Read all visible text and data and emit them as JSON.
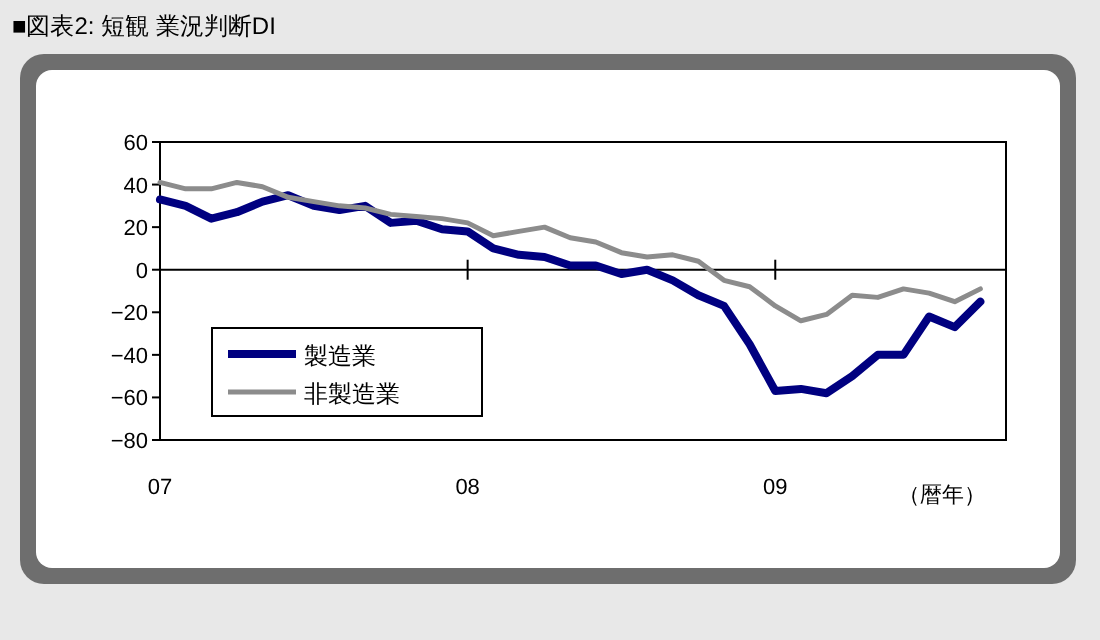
{
  "chart_data": {
    "type": "line",
    "title": "■図表2: 短観 業況判断DI",
    "xlabel": "（暦年）",
    "x": [
      "2007-01",
      "2007-02",
      "2007-03",
      "2007-04",
      "2007-05",
      "2007-06",
      "2007-07",
      "2007-08",
      "2007-09",
      "2007-10",
      "2007-11",
      "2007-12",
      "2008-01",
      "2008-02",
      "2008-03",
      "2008-04",
      "2008-05",
      "2008-06",
      "2008-07",
      "2008-08",
      "2008-09",
      "2008-10",
      "2008-11",
      "2008-12",
      "2009-01",
      "2009-02",
      "2009-03",
      "2009-04",
      "2009-05",
      "2009-06",
      "2009-07",
      "2009-08",
      "2009-09"
    ],
    "series": [
      {
        "name": "製造業",
        "color": "#000080",
        "values": [
          33,
          30,
          24,
          27,
          32,
          35,
          30,
          28,
          30,
          22,
          23,
          19,
          18,
          10,
          7,
          6,
          2,
          2,
          -2,
          0,
          -5,
          -12,
          -17,
          -35,
          -57,
          -56,
          -58,
          -50,
          -40,
          -40,
          -22,
          -27,
          -15
        ]
      },
      {
        "name": "非製造業",
        "color": "#8c8c8c",
        "values": [
          41,
          38,
          38,
          41,
          39,
          34,
          32,
          30,
          29,
          26,
          25,
          24,
          22,
          16,
          18,
          20,
          15,
          13,
          8,
          6,
          7,
          4,
          -5,
          -8,
          -17,
          -24,
          -21,
          -12,
          -13,
          -9,
          -11,
          -15,
          -9
        ]
      }
    ],
    "xlim": [
      "2007-01",
      "2009-10"
    ],
    "xticks": [
      {
        "value": "2007-01",
        "label": "07"
      },
      {
        "value": "2008-01",
        "label": "08"
      },
      {
        "value": "2009-01",
        "label": "09"
      }
    ],
    "ylim": [
      -80,
      60
    ],
    "yticks": [
      -80,
      -60,
      -40,
      -20,
      0,
      20,
      40,
      60
    ],
    "ref_lines": [
      {
        "axis": "y",
        "value": 0,
        "color": "#000000"
      }
    ],
    "legend": "bottom left",
    "marker": "none",
    "line_style": "solid"
  }
}
